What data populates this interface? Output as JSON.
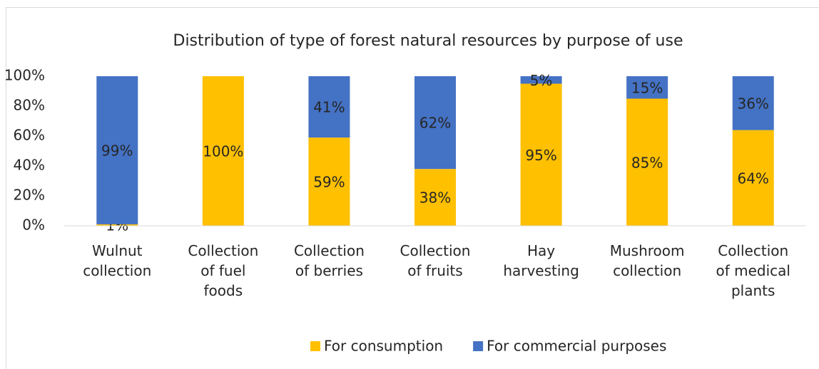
{
  "chart_data": {
    "type": "stacked_bar",
    "title": "Distribution of type of forest natural resources by purpose of use",
    "categories": [
      "Wulnut collection",
      "Collection of fuel foods",
      "Collection of berries",
      "Collection of fruits",
      "Hay harvesting",
      "Mushroom collection",
      "Collection of medical plants"
    ],
    "series": [
      {
        "name": "For consumption",
        "color": "#ffc000",
        "values": [
          1,
          100,
          59,
          38,
          95,
          85,
          64
        ],
        "value_labels": [
          "1%",
          "100%",
          "59%",
          "38%",
          "95%",
          "85%",
          "64%"
        ]
      },
      {
        "name": "For commercial purposes",
        "color": "#4472c4",
        "values": [
          99,
          0,
          41,
          62,
          5,
          15,
          36
        ],
        "value_labels": [
          "99%",
          null,
          "41%",
          "62%",
          "5%",
          "15%",
          "36%"
        ]
      }
    ],
    "ylim": [
      0,
      100
    ],
    "yticks": [
      {
        "value": 0,
        "label": "0%"
      },
      {
        "value": 20,
        "label": "20%"
      },
      {
        "value": 40,
        "label": "40%"
      },
      {
        "value": 60,
        "label": "60%"
      },
      {
        "value": 80,
        "label": "80%"
      },
      {
        "value": 100,
        "label": "100%"
      }
    ],
    "grid": false,
    "legend": "bottom"
  }
}
